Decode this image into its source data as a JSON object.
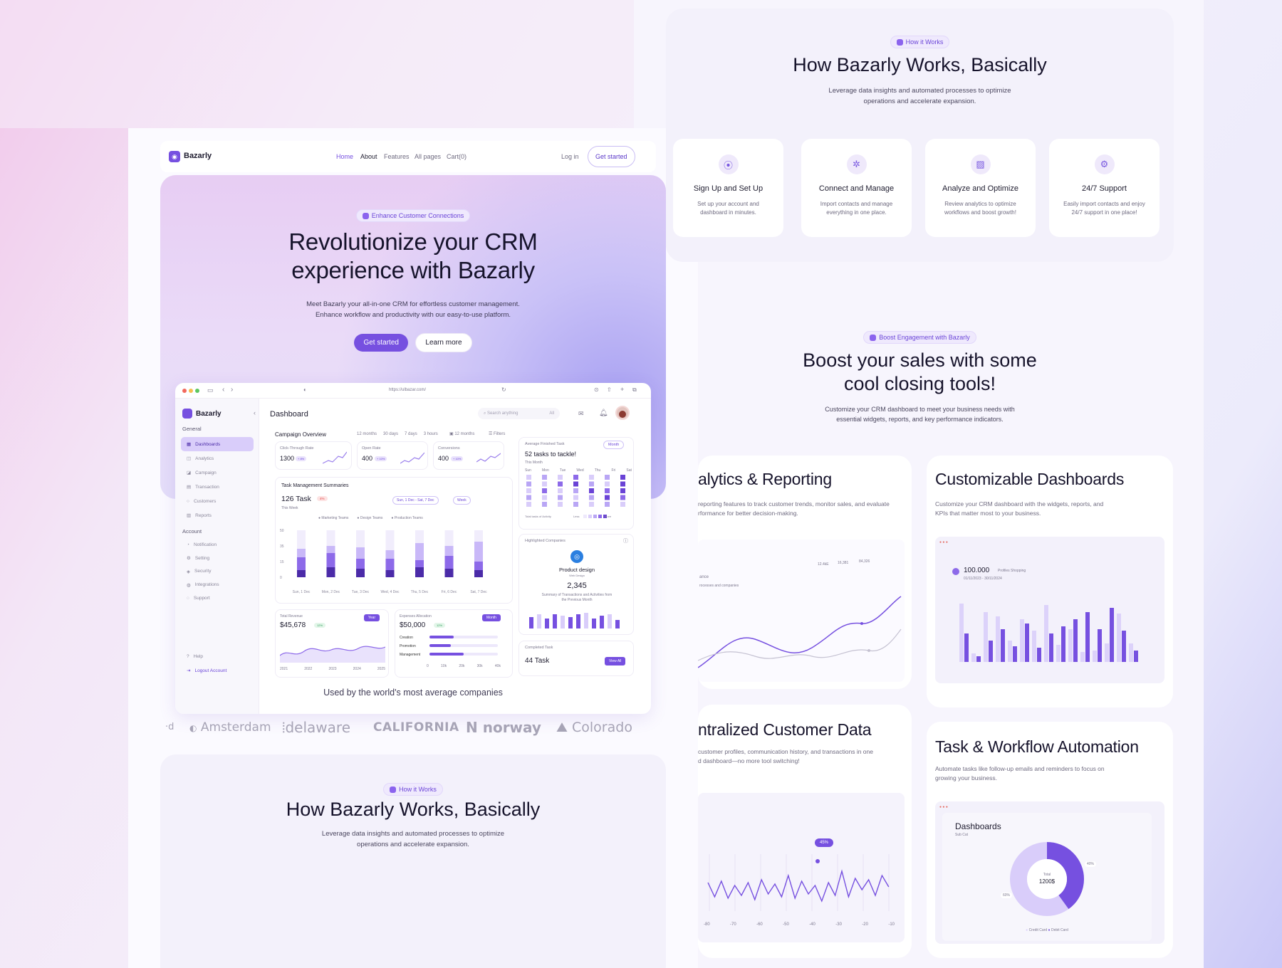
{
  "nav": {
    "brand": "Bazarly",
    "links": [
      "Home",
      "About",
      "Features",
      "All pages",
      "Cart(0)"
    ],
    "login": "Log in",
    "cta": "Get started"
  },
  "hero": {
    "badge": "Enhance Customer Connections",
    "title_line1": "Revolutionize your CRM",
    "title_line2": "experience with Bazarly",
    "sub_line1": "Meet Bazarly your all-in-one CRM for effortless customer management.",
    "sub_line2": "Enhance workflow and productivity with our easy-to-use platform.",
    "primary": "Get started",
    "secondary": "Learn more"
  },
  "browser": {
    "url": "https://ulbazar.com/"
  },
  "dashboard": {
    "brand": "Bazarly",
    "title": "Dashboard",
    "search_placeholder": "Search anything",
    "search_scope": "All",
    "sidebar": {
      "general_label": "General",
      "general": [
        "Dashboards",
        "Analytics",
        "Campaign",
        "Transaction",
        "Customers",
        "Reports"
      ],
      "account_label": "Account",
      "account": [
        "Notification",
        "Setting",
        "Security",
        "Integrations",
        "Support"
      ],
      "help": "Help",
      "logout": "Logout Account"
    },
    "campaign": {
      "title": "Campaign Overview",
      "ranges": [
        "12 months",
        "30 days",
        "7 days",
        "3 hours"
      ],
      "picker": "12 months",
      "filters": "Filters",
      "kpis": [
        {
          "label": "Click-Through Rate",
          "value": "1300",
          "delta": "+ 8%"
        },
        {
          "label": "Open Rate",
          "value": "400",
          "delta": "+ 10%"
        },
        {
          "label": "Conversions",
          "value": "400",
          "delta": "+ 10%"
        }
      ]
    },
    "avg_task": {
      "label": "Average Finished Task",
      "period": "Month",
      "headline": "52 tasks to tackle!",
      "sub": "This Month",
      "days": [
        "Sun",
        "Mon",
        "Tue",
        "Wed",
        "Thu",
        "Fri",
        "Sat"
      ],
      "legend_left": "Total tasks of Activity",
      "legend_less": "Less",
      "legend_more": "More"
    },
    "tasks": {
      "title": "Task Management Summaries",
      "count": "126 Task",
      "delta": "4%",
      "sub": "This Week",
      "range": "Sun, 1 Dec - Sat, 7 Dec",
      "period": "Week",
      "legend": [
        "Marketing Teams",
        "Design Teams",
        "Production Teams"
      ],
      "yticks": [
        "50",
        "35",
        "15",
        "0"
      ],
      "xlabels": [
        "Sun, 1 Dec",
        "Mon, 2 Dec",
        "Tue, 3 Dec",
        "Wed, 4 Dec",
        "Thu, 5 Dec",
        "Fri, 6 Dec",
        "Sat, 7 Dec"
      ]
    },
    "highlight": {
      "label": "Highlighted Companies",
      "name": "Product design",
      "sub": "Web Design",
      "value": "2,345",
      "desc_line1": "Summary of Transactions and Activities from",
      "desc_line2": "the Previous Month"
    },
    "revenue": {
      "label": "Total Revenue",
      "value": "$45,678",
      "delta": "12%",
      "period": "Year",
      "xlabels": [
        "2021",
        "2022",
        "2023",
        "2024",
        "2025"
      ]
    },
    "expenses": {
      "label": "Expenses Allocation",
      "value": "$50,000",
      "delta": "12%",
      "period": "Month",
      "rows": [
        "Creation",
        "Promotion",
        "Management"
      ],
      "xlabels": [
        "0",
        "10k",
        "20k",
        "30k",
        "40k"
      ]
    },
    "completed": {
      "label": "Completed Task",
      "value": "44 Task",
      "button": "View All"
    }
  },
  "logos": {
    "caption": "Used by the world's most average companies",
    "items": [
      "Amsterdam",
      "delaware",
      "CALIFORNIA",
      "norway",
      "Colorado"
    ]
  },
  "how_bottom": {
    "badge": "How it Works",
    "title": "How Bazarly Works, Basically",
    "sub_line1": "Leverage data insights and automated processes to optimize",
    "sub_line2": "operations and accelerate expansion."
  },
  "how_top": {
    "badge": "How it Works",
    "title": "How Bazarly Works, Basically",
    "sub_line1": "Leverage data insights and automated processes to optimize",
    "sub_line2": "operations and accelerate expansion.",
    "cards": [
      {
        "title": "Sign Up and Set Up",
        "line1": "Set up your account and",
        "line2": "dashboard in minutes."
      },
      {
        "title": "Connect and Manage",
        "line1": "Import contacts and manage",
        "line2": "everything in one place."
      },
      {
        "title": "Analyze and Optimize",
        "line1": "Review analytics to optimize",
        "line2": "workflows and boost growth!"
      },
      {
        "title": "24/7 Support",
        "line1": "Easily import contacts and enjoy",
        "line2": "24/7 support in one place!"
      }
    ]
  },
  "boost": {
    "badge": "Boost Engagement with Bazarly",
    "title_line1": "Boost your sales with some",
    "title_line2": "cool closing tools!",
    "sub_line1": "Customize your CRM dashboard to meet your business needs with",
    "sub_line2": "essential widgets, reports, and key performance indicators."
  },
  "features": {
    "analytics": {
      "title": "alytics & Reporting",
      "line1": "reporting features to track customer trends, monitor sales, and evaluate",
      "line2": "rformance for better decision-making.",
      "mini_label": "ance",
      "mini_sub": "rocesses and companies",
      "stats": [
        "12.4kE",
        "16,381",
        "84,326"
      ]
    },
    "custom": {
      "title": "Customizable Dashboards",
      "line1": "Customize your CRM dashboard with the widgets, reports, and",
      "line2": "KPIs that matter most to your business.",
      "stat": "100.000",
      "stat_label": "Profiles Shopping",
      "stat_range": "01/11/2023 - 30/11/2024"
    },
    "central": {
      "title": "ntralized Customer Data",
      "line1": "customer profiles, communication history, and transactions in one",
      "line2": "d dashboard—no more tool switching!",
      "tooltip": "45%",
      "xlabels": [
        "-80",
        "-70",
        "-60",
        "-50",
        "-40",
        "-30",
        "-20",
        "-10"
      ]
    },
    "workflow": {
      "title": "Task & Workflow Automation",
      "line1": "Automate tasks like follow-up emails and reminders to focus on",
      "line2": "growing your business.",
      "panel_title": "Dashboards",
      "panel_sub": "Sub Cat",
      "donut_label": "Total",
      "donut_value": "1200$",
      "pct_a": "40%",
      "pct_b": "60%",
      "legend": [
        "Credit Card",
        "Debit Card"
      ]
    }
  },
  "colors": {
    "accent": "#7650e0",
    "accent_light": "#b9a6f5",
    "accent_dark": "#4b2ba8"
  }
}
